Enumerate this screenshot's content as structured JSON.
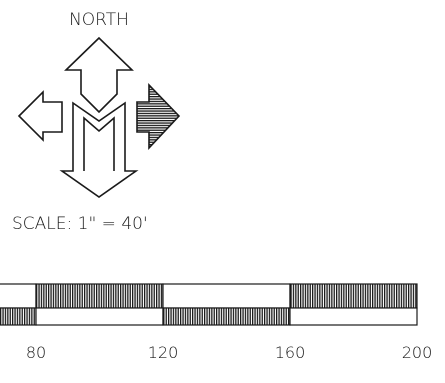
{
  "north_label": "NORTH",
  "scale_text": "SCALE: 1\" = 40'",
  "scale_bar": {
    "tick_labels": [
      "80",
      "120",
      "160",
      "200"
    ]
  },
  "colors": {
    "ink": "#1a1a1a",
    "paper": "#ffffff"
  }
}
